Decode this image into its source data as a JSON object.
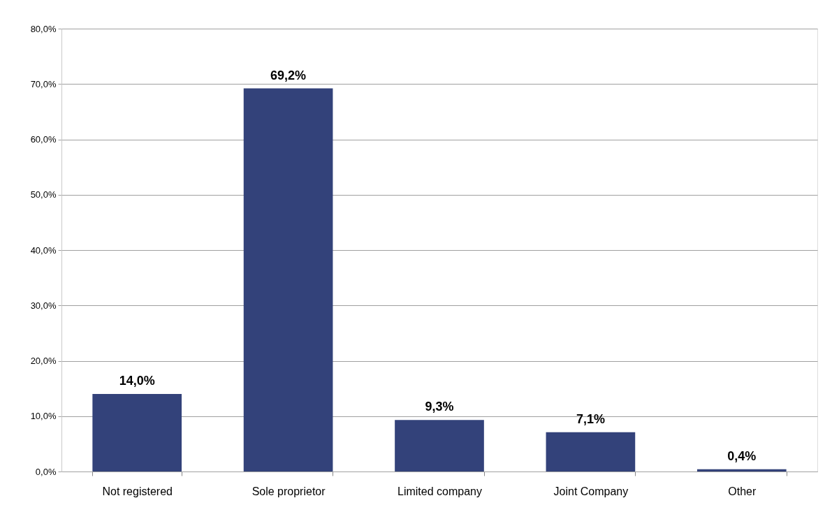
{
  "chart_data": {
    "type": "bar",
    "categories": [
      "Not registered",
      "Sole proprietor",
      "Limited company",
      "Joint Company",
      "Other"
    ],
    "values": [
      14.0,
      69.2,
      9.3,
      7.1,
      0.4
    ],
    "color": "#33427a",
    "value_labels": [
      "14,0%",
      "69,2%",
      "9,3%",
      "7,1%",
      "0,4%"
    ],
    "ylim": [
      0,
      80
    ],
    "yticks": [
      {
        "value": 0,
        "label": "0,0%"
      },
      {
        "value": 10,
        "label": "10,0%"
      },
      {
        "value": 20,
        "label": "20,0%"
      },
      {
        "value": 30,
        "label": "30,0%"
      },
      {
        "value": 40,
        "label": "40,0%"
      },
      {
        "value": 50,
        "label": "50,0%"
      },
      {
        "value": 60,
        "label": "60,0%"
      },
      {
        "value": 70,
        "label": "70,0%"
      },
      {
        "value": 80,
        "label": "80,0%"
      }
    ],
    "grid": "y"
  }
}
